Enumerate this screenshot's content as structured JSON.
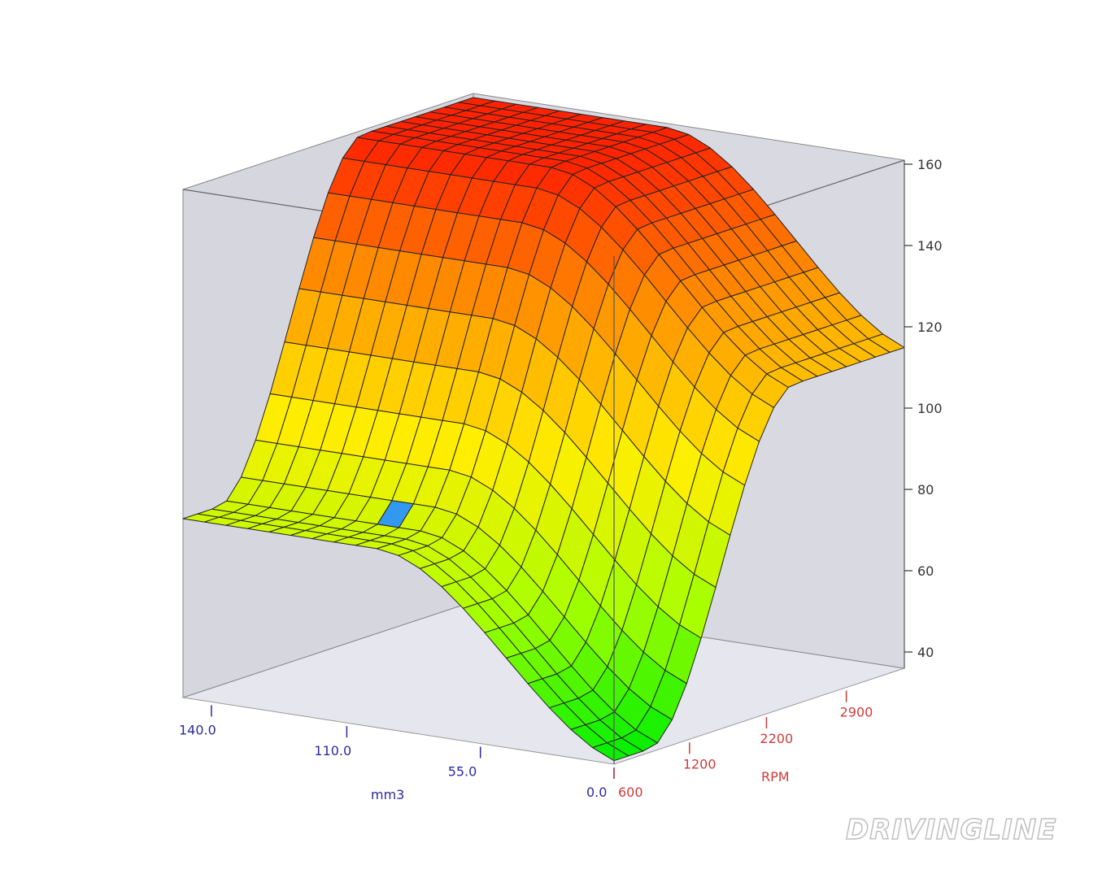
{
  "chart_data": {
    "type": "surface3d",
    "title": "",
    "xlabel": "mm3",
    "ylabel": "RPM",
    "zlabel": "",
    "x_ticks": [
      "140.0",
      "110.0",
      "55.0",
      "0.0"
    ],
    "x_tick_values": [
      140,
      110,
      55,
      0
    ],
    "y_ticks": [
      "600",
      "1200",
      "2200",
      "2900"
    ],
    "y_tick_values": [
      600,
      1200,
      2200,
      2900
    ],
    "z_ticks": [
      "40",
      "60",
      "80",
      "100",
      "120",
      "140",
      "160"
    ],
    "z_tick_values": [
      40,
      60,
      80,
      100,
      120,
      140,
      160
    ],
    "zlim": [
      36,
      161
    ],
    "grid_cells": [
      20,
      20
    ],
    "corner_values": {
      "mm3_0_rpm_min": 36,
      "mm3_140_rpm_min": 80,
      "mm3_0_rpm_max": 114,
      "mm3_140_rpm_max": 160
    },
    "plateau_value": 160,
    "colormap": [
      "#00ee00",
      "#aaff00",
      "#ffee00",
      "#ff9900",
      "#ff2200"
    ],
    "highlight_cell_color": "#3399ee"
  },
  "watermark": "DRIVINGLINE"
}
